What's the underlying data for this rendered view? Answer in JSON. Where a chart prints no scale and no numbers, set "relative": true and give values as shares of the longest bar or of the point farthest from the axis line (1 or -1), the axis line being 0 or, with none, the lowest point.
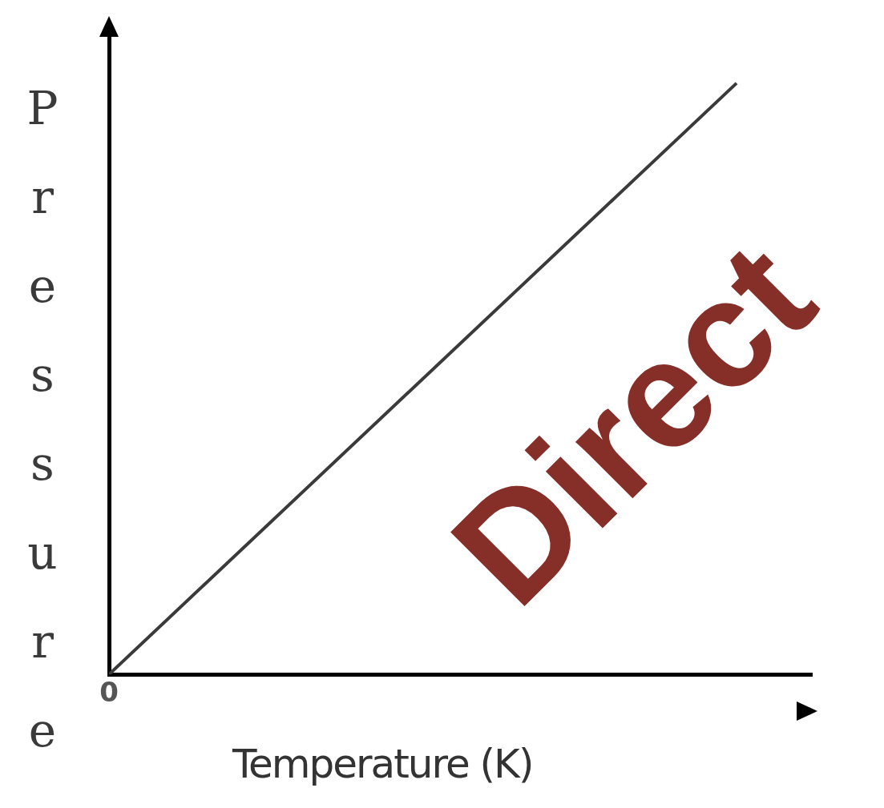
{
  "chart_data": {
    "type": "line",
    "xlabel": "Temperature (K)",
    "ylabel": "Pressure",
    "annotations": [
      {
        "text": "0",
        "y": 0
      },
      "Direct"
    ],
    "categories": [
      null,
      null
    ],
    "values": [
      0,
      1
    ],
    "color": "#3a3a3a",
    "relative": true,
    "marker": "none"
  }
}
